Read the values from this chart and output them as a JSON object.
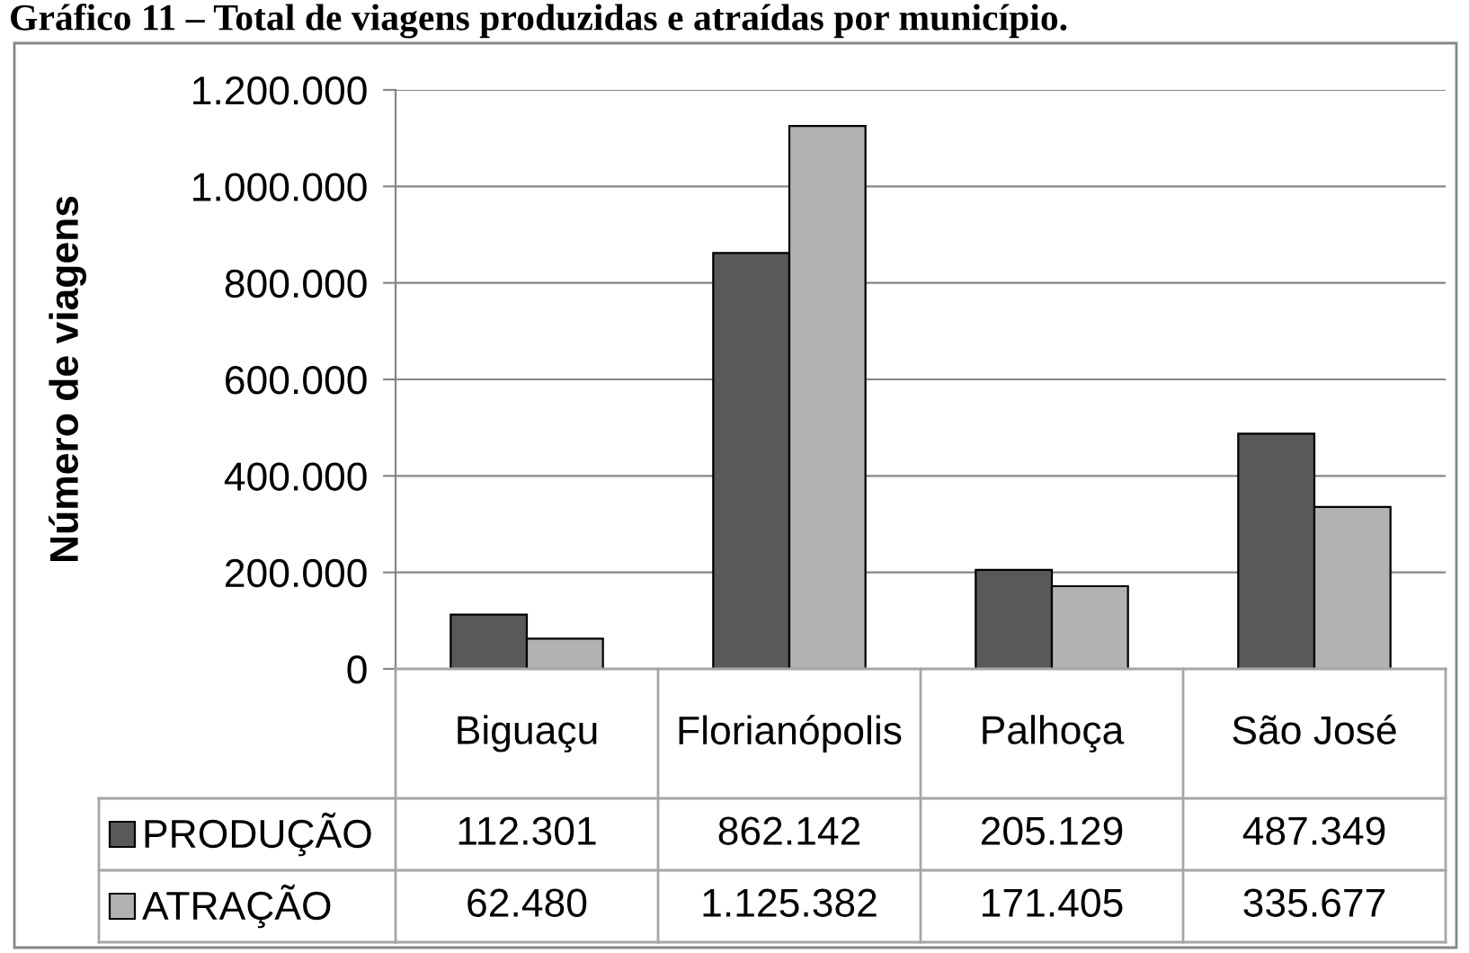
{
  "chart_data": {
    "type": "bar",
    "title": "Gráfico 11 – Total de viagens produzidas e atraídas por município.",
    "ylabel": "Número de viagens",
    "categories": [
      "Biguaçu",
      "Florianópolis",
      "Palhoça",
      "São José"
    ],
    "series": [
      {
        "name": "PRODUÇÃO",
        "color": "#595959",
        "values": [
          112301,
          862142,
          205129,
          487349
        ],
        "value_labels": [
          "112.301",
          "862.142",
          "205.129",
          "487.349"
        ]
      },
      {
        "name": "ATRAÇÃO",
        "color": "#b2b2b2",
        "values": [
          62480,
          1125382,
          171405,
          335677
        ],
        "value_labels": [
          "62.480",
          "1.125.382",
          "171.405",
          "335.677"
        ]
      }
    ],
    "ylim": [
      0,
      1200000
    ],
    "yticks": [
      0,
      {
        "value": 200000,
        "label": "200.000"
      },
      {
        "value": 400000,
        "label": "400.000"
      },
      {
        "value": 600000,
        "label": "600.000"
      },
      {
        "value": 800000,
        "label": "800.000"
      },
      {
        "value": 1000000,
        "label": "1.000.000"
      },
      {
        "value": 1200000,
        "label": "1.200.000"
      }
    ],
    "grid": "y",
    "legend": "bottom left"
  }
}
